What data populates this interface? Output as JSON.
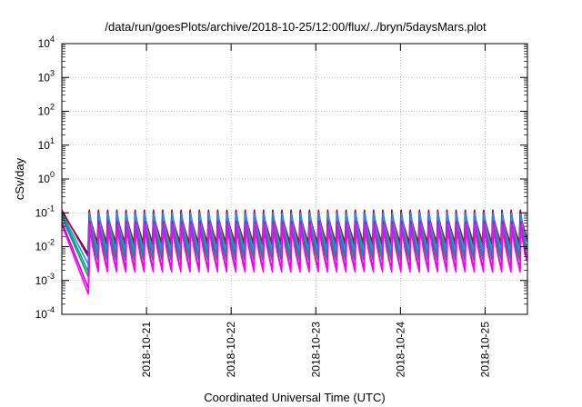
{
  "chart_data": {
    "type": "line",
    "title": "/data/run/goesPlots/archive/2018-10-25/12:00/flux/../bryn/5daysMars.plot",
    "xlabel": "Coordinated Universal Time (UTC)",
    "ylabel": "cSv/day",
    "y_scale": "log",
    "ylim": [
      0.0001,
      10000
    ],
    "y_ticks": [
      {
        "base": "10",
        "exp": "-4"
      },
      {
        "base": "10",
        "exp": "-3"
      },
      {
        "base": "10",
        "exp": "-2"
      },
      {
        "base": "10",
        "exp": "-1"
      },
      {
        "base": "10",
        "exp": "0"
      },
      {
        "base": "10",
        "exp": "1"
      },
      {
        "base": "10",
        "exp": "2"
      },
      {
        "base": "10",
        "exp": "3"
      },
      {
        "base": "10",
        "exp": "4"
      }
    ],
    "xlim": [
      "2018-10-20T00:00",
      "2018-10-25T12:00"
    ],
    "x_ticks": [
      "2018-10-21",
      "2018-10-22",
      "2018-10-23",
      "2018-10-24",
      "2018-10-25"
    ],
    "grid": true,
    "series": [
      {
        "color": "#0000cd",
        "peak": 0.11,
        "trough": 0.011,
        "startDip": 0.006
      },
      {
        "color": "#cc0000",
        "peak": 0.12,
        "trough": 0.013,
        "startDip": 0.005
      },
      {
        "color": "#00a0a0",
        "peak": 0.09,
        "trough": 0.006,
        "startDip": 0.0018
      },
      {
        "color": "#00a050",
        "peak": 0.075,
        "trough": 0.004,
        "startDip": 0.0013
      },
      {
        "color": "#1e90ff",
        "peak": 0.1,
        "trough": 0.008,
        "startDip": 0.003
      },
      {
        "color": "#cc00cc",
        "peak": 0.055,
        "trough": 0.0022,
        "startDip": 0.0006
      },
      {
        "color": "#ff00ff",
        "peak": 0.045,
        "trough": 0.0018,
        "startDip": 0.0004
      }
    ],
    "sawtooth_period_hours": 2.6
  }
}
